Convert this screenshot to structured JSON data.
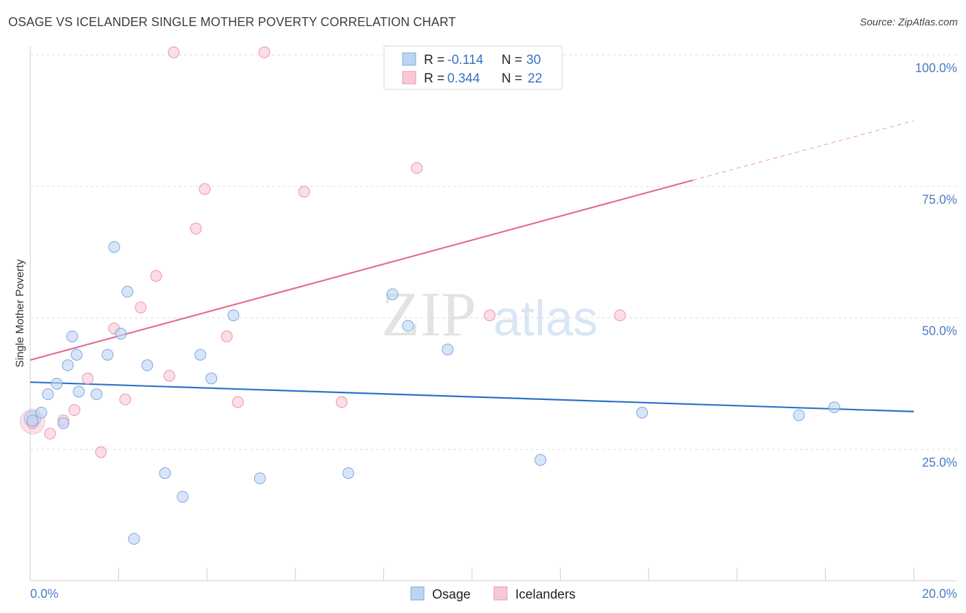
{
  "header": {
    "title": "OSAGE VS ICELANDER SINGLE MOTHER POVERTY CORRELATION CHART",
    "source": "Source: ZipAtlas.com"
  },
  "watermark": {
    "zip": "ZIP",
    "atlas": "atlas"
  },
  "legend_top": {
    "rows": [
      {
        "r_label": "R =",
        "r_value": "-0.114",
        "n_label": "N =",
        "n_value": "30"
      },
      {
        "r_label": "R =",
        "r_value": "0.344",
        "n_label": "N =",
        "n_value": "22"
      }
    ]
  },
  "legend_bottom": {
    "items": [
      "Osage",
      "Icelanders"
    ]
  },
  "colors": {
    "osage_fill": "#bcd4f3",
    "osage_stroke": "#7aa6de",
    "osage_line": "#2a6fc8",
    "iceland_fill": "#f9c8d6",
    "iceland_stroke": "#eb93ad",
    "iceland_line": "#e06b93",
    "grid": "#dddddd",
    "tick_text": "#4a7cc7"
  },
  "chart_data": {
    "type": "scatter",
    "title": "OSAGE VS ICELANDER SINGLE MOTHER POVERTY CORRELATION CHART",
    "xlabel": "",
    "ylabel": "Single Mother Poverty",
    "xlim": [
      0,
      20
    ],
    "ylim": [
      0,
      105
    ],
    "x_tick_labels": [
      "0.0%",
      "20.0%"
    ],
    "y_ticks": [
      25,
      50,
      75,
      100
    ],
    "y_tick_labels": [
      "25.0%",
      "50.0%",
      "75.0%",
      "100.0%"
    ],
    "series": [
      {
        "name": "Osage",
        "r": -0.114,
        "n": 30,
        "points": [
          [
            0.05,
            30.5
          ],
          [
            0.25,
            32
          ],
          [
            0.4,
            35.5
          ],
          [
            0.6,
            37.5
          ],
          [
            0.75,
            30
          ],
          [
            0.85,
            41
          ],
          [
            0.95,
            46.5
          ],
          [
            1.05,
            43
          ],
          [
            1.1,
            36
          ],
          [
            1.5,
            35.5
          ],
          [
            1.75,
            43
          ],
          [
            1.9,
            63.5
          ],
          [
            2.05,
            47
          ],
          [
            2.2,
            55
          ],
          [
            2.35,
            8
          ],
          [
            2.65,
            41
          ],
          [
            3.05,
            20.5
          ],
          [
            3.45,
            16
          ],
          [
            3.85,
            43
          ],
          [
            4.1,
            38.5
          ],
          [
            4.6,
            50.5
          ],
          [
            5.2,
            19.5
          ],
          [
            7.2,
            20.5
          ],
          [
            8.2,
            54.5
          ],
          [
            8.55,
            48.5
          ],
          [
            9.45,
            44
          ],
          [
            11.55,
            23
          ],
          [
            13.85,
            32
          ],
          [
            17.4,
            31.5
          ],
          [
            18.2,
            33
          ]
        ],
        "trend": {
          "x": [
            0,
            20
          ],
          "y": [
            37.8,
            32.2
          ]
        }
      },
      {
        "name": "Icelanders",
        "r": 0.344,
        "n": 22,
        "points": [
          [
            0.05,
            30
          ],
          [
            0.45,
            28
          ],
          [
            0.75,
            30.5
          ],
          [
            1.0,
            32.5
          ],
          [
            1.3,
            38.5
          ],
          [
            1.6,
            24.5
          ],
          [
            1.9,
            48
          ],
          [
            2.15,
            34.5
          ],
          [
            2.5,
            52
          ],
          [
            2.85,
            58
          ],
          [
            3.15,
            39
          ],
          [
            3.25,
            100.5
          ],
          [
            3.75,
            67
          ],
          [
            3.95,
            74.5
          ],
          [
            4.45,
            46.5
          ],
          [
            4.7,
            34
          ],
          [
            5.3,
            100.5
          ],
          [
            6.2,
            74
          ],
          [
            7.05,
            34
          ],
          [
            8.75,
            78.5
          ],
          [
            10.4,
            50.5
          ],
          [
            13.35,
            50.5
          ]
        ],
        "trend": {
          "x": [
            0,
            15
          ],
          "y": [
            42,
            76.2
          ]
        },
        "trend_dashed": {
          "x": [
            15,
            20
          ],
          "y": [
            76.2,
            87.5
          ]
        }
      }
    ]
  }
}
